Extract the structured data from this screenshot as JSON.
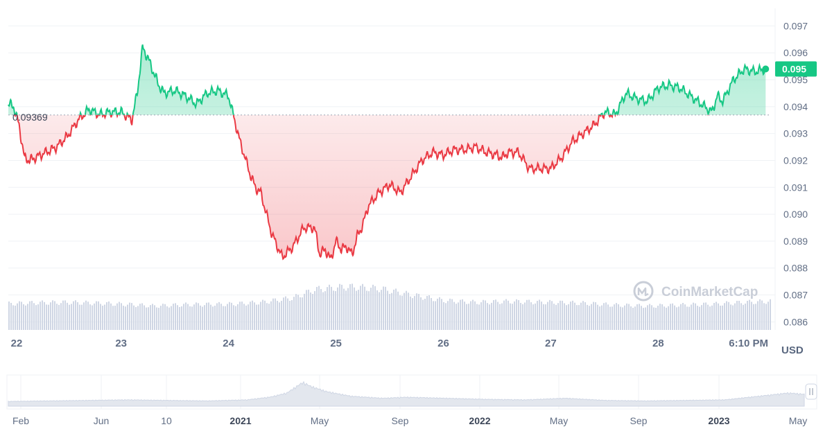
{
  "chart_data": {
    "type": "area",
    "reference_value": 0.09369,
    "reference_label": "0.09369",
    "last_price_label": "0.095",
    "last_price": 0.0954,
    "currency": "USD",
    "watermark": "CoinMarketCap",
    "ylim": [
      0.0857,
      0.0975
    ],
    "y_ticks": [
      0.097,
      0.096,
      0.095,
      0.094,
      0.093,
      0.092,
      0.091,
      0.09,
      0.089,
      0.088,
      0.087,
      0.086
    ],
    "y_tick_labels": [
      "0.097",
      "0.096",
      "0.095",
      "0.094",
      "0.093",
      "0.092",
      "0.091",
      "0.090",
      "0.089",
      "0.088",
      "0.087",
      "0.086"
    ],
    "x_ticks": [
      "22",
      "23",
      "24",
      "25",
      "26",
      "27",
      "28",
      "6:10 PM"
    ],
    "x_range_days": [
      21.95,
      29.05
    ],
    "colors": {
      "up": "#16c784",
      "down": "#ea3943",
      "grid": "#eff2f5",
      "volume": "#cfd6e4"
    },
    "series": [
      {
        "x": [
          21.95,
          22.0,
          22.05,
          22.1,
          22.15,
          22.2,
          22.3,
          22.4,
          22.5,
          22.6,
          22.7,
          22.8,
          22.9,
          23.0,
          23.1,
          23.15,
          23.2,
          23.25,
          23.3,
          23.35,
          23.4,
          23.5,
          23.6,
          23.7,
          23.8,
          23.9,
          24.0,
          24.1,
          24.2,
          24.25,
          24.3,
          24.4,
          24.5,
          24.6,
          24.7,
          24.8,
          24.85,
          24.9,
          24.95,
          25.0,
          25.05,
          25.1,
          25.15,
          25.2,
          25.25,
          25.3,
          25.4,
          25.5,
          25.6,
          25.7,
          25.8,
          25.9,
          26.0,
          26.1,
          26.2,
          26.3,
          26.4,
          26.5,
          26.55,
          26.6,
          26.7,
          26.8,
          26.9,
          27.0,
          27.1,
          27.2,
          27.3,
          27.4,
          27.5,
          27.6,
          27.7,
          27.8,
          27.9,
          28.0,
          28.1,
          28.2,
          28.3,
          28.4,
          28.5,
          28.55,
          28.6,
          28.7,
          28.8,
          28.9,
          29.0
        ],
        "y": [
          0.0941,
          0.094,
          0.0933,
          0.0921,
          0.092,
          0.0921,
          0.0923,
          0.0925,
          0.0929,
          0.0935,
          0.0939,
          0.0937,
          0.0938,
          0.0938,
          0.0935,
          0.0945,
          0.0962,
          0.0958,
          0.0953,
          0.0948,
          0.0945,
          0.0946,
          0.0944,
          0.0941,
          0.0945,
          0.0946,
          0.0944,
          0.0928,
          0.0915,
          0.091,
          0.0908,
          0.0893,
          0.0884,
          0.0888,
          0.0895,
          0.0895,
          0.0885,
          0.0887,
          0.0883,
          0.089,
          0.0887,
          0.0888,
          0.0885,
          0.0892,
          0.0896,
          0.0903,
          0.0908,
          0.0911,
          0.0908,
          0.0914,
          0.092,
          0.0923,
          0.0922,
          0.0924,
          0.0924,
          0.0925,
          0.0923,
          0.0922,
          0.0921,
          0.0923,
          0.0923,
          0.0917,
          0.0917,
          0.0917,
          0.0921,
          0.0927,
          0.093,
          0.0933,
          0.0938,
          0.0937,
          0.0945,
          0.0943,
          0.0942,
          0.0947,
          0.0948,
          0.0947,
          0.0944,
          0.0941,
          0.0938,
          0.0944,
          0.0942,
          0.095,
          0.0954,
          0.0953,
          0.0954
        ]
      }
    ],
    "volume": [
      [
        21.95,
        0.57
      ],
      [
        22.2,
        0.59
      ],
      [
        22.5,
        0.6
      ],
      [
        22.8,
        0.58
      ],
      [
        23.1,
        0.55
      ],
      [
        23.3,
        0.52
      ],
      [
        23.6,
        0.55
      ],
      [
        24.0,
        0.56
      ],
      [
        24.3,
        0.6
      ],
      [
        24.6,
        0.7
      ],
      [
        24.8,
        0.88
      ],
      [
        25.1,
        0.94
      ],
      [
        25.4,
        0.9
      ],
      [
        25.7,
        0.76
      ],
      [
        26.0,
        0.64
      ],
      [
        26.3,
        0.6
      ],
      [
        26.6,
        0.62
      ],
      [
        27.0,
        0.6
      ],
      [
        27.3,
        0.58
      ],
      [
        27.6,
        0.54
      ],
      [
        27.9,
        0.52
      ],
      [
        28.2,
        0.54
      ],
      [
        28.5,
        0.56
      ],
      [
        28.8,
        0.6
      ],
      [
        29.0,
        0.62
      ]
    ]
  },
  "navigator": {
    "labels": [
      "Feb",
      "Jun",
      "10",
      "2021",
      "May",
      "Sep",
      "2022",
      "May",
      "Sep",
      "2023",
      "May"
    ],
    "bold_labels": [
      "2021",
      "2022",
      "2023"
    ],
    "profile": [
      [
        0,
        0.18
      ],
      [
        0.05,
        0.2
      ],
      [
        0.1,
        0.22
      ],
      [
        0.15,
        0.24
      ],
      [
        0.2,
        0.22
      ],
      [
        0.25,
        0.2
      ],
      [
        0.3,
        0.24
      ],
      [
        0.33,
        0.35
      ],
      [
        0.35,
        0.5
      ],
      [
        0.37,
        0.9
      ],
      [
        0.38,
        0.75
      ],
      [
        0.4,
        0.55
      ],
      [
        0.43,
        0.38
      ],
      [
        0.47,
        0.3
      ],
      [
        0.5,
        0.34
      ],
      [
        0.55,
        0.3
      ],
      [
        0.6,
        0.26
      ],
      [
        0.65,
        0.24
      ],
      [
        0.7,
        0.3
      ],
      [
        0.75,
        0.22
      ],
      [
        0.8,
        0.2
      ],
      [
        0.85,
        0.22
      ],
      [
        0.9,
        0.24
      ],
      [
        0.95,
        0.4
      ],
      [
        0.98,
        0.5
      ],
      [
        1.0,
        0.45
      ]
    ]
  }
}
